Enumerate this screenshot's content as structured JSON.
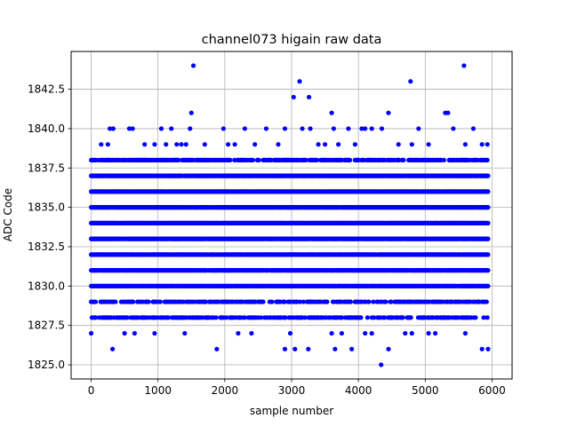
{
  "chart_data": {
    "type": "scatter",
    "title": "channel073 higain raw data",
    "xlabel": "sample number",
    "ylabel": "ADC Code",
    "xlim": [
      -300,
      6300
    ],
    "ylim": [
      1824.1,
      1844.9
    ],
    "xticks": [
      0,
      1000,
      2000,
      3000,
      4000,
      5000,
      6000
    ],
    "xtick_labels": [
      "0",
      "1000",
      "2000",
      "3000",
      "4000",
      "5000",
      "6000"
    ],
    "yticks": [
      1825.0,
      1827.5,
      1830.0,
      1832.5,
      1835.0,
      1837.5,
      1840.0,
      1842.5
    ],
    "ytick_labels": [
      "1825.0",
      "1827.5",
      "1830.0",
      "1832.5",
      "1835.0",
      "1837.5",
      "1840.0",
      "1842.5"
    ],
    "grid": true,
    "marker_color": "#0000ff",
    "x_range": [
      0,
      5940
    ],
    "dense_rows": [
      1830,
      1831,
      1832,
      1833,
      1834,
      1835,
      1836,
      1837
    ],
    "medium_rows": [
      1828,
      1829,
      1838
    ],
    "sparse_points": [
      {
        "x": 0,
        "y": 1827
      },
      {
        "x": 320,
        "y": 1826
      },
      {
        "x": 500,
        "y": 1827
      },
      {
        "x": 650,
        "y": 1827
      },
      {
        "x": 950,
        "y": 1827
      },
      {
        "x": 1400,
        "y": 1827
      },
      {
        "x": 1880,
        "y": 1826
      },
      {
        "x": 2200,
        "y": 1827
      },
      {
        "x": 2400,
        "y": 1827
      },
      {
        "x": 2900,
        "y": 1826
      },
      {
        "x": 2980,
        "y": 1827
      },
      {
        "x": 3050,
        "y": 1826
      },
      {
        "x": 3250,
        "y": 1826
      },
      {
        "x": 3600,
        "y": 1827
      },
      {
        "x": 3650,
        "y": 1826
      },
      {
        "x": 3750,
        "y": 1827
      },
      {
        "x": 3900,
        "y": 1826
      },
      {
        "x": 4100,
        "y": 1827
      },
      {
        "x": 4200,
        "y": 1827
      },
      {
        "x": 4340,
        "y": 1825
      },
      {
        "x": 4450,
        "y": 1826
      },
      {
        "x": 4700,
        "y": 1827
      },
      {
        "x": 4800,
        "y": 1827
      },
      {
        "x": 5050,
        "y": 1827
      },
      {
        "x": 5150,
        "y": 1827
      },
      {
        "x": 5600,
        "y": 1827
      },
      {
        "x": 5850,
        "y": 1826
      },
      {
        "x": 5940,
        "y": 1826
      },
      {
        "x": 150,
        "y": 1839
      },
      {
        "x": 250,
        "y": 1839
      },
      {
        "x": 280,
        "y": 1840
      },
      {
        "x": 330,
        "y": 1840
      },
      {
        "x": 570,
        "y": 1840
      },
      {
        "x": 620,
        "y": 1840
      },
      {
        "x": 800,
        "y": 1839
      },
      {
        "x": 950,
        "y": 1839
      },
      {
        "x": 1050,
        "y": 1840
      },
      {
        "x": 1120,
        "y": 1839
      },
      {
        "x": 1200,
        "y": 1840
      },
      {
        "x": 1280,
        "y": 1839
      },
      {
        "x": 1350,
        "y": 1839
      },
      {
        "x": 1420,
        "y": 1839
      },
      {
        "x": 1480,
        "y": 1840
      },
      {
        "x": 1500,
        "y": 1841
      },
      {
        "x": 1530,
        "y": 1844
      },
      {
        "x": 1700,
        "y": 1839
      },
      {
        "x": 1980,
        "y": 1840
      },
      {
        "x": 2050,
        "y": 1839
      },
      {
        "x": 2150,
        "y": 1839
      },
      {
        "x": 2300,
        "y": 1840
      },
      {
        "x": 2450,
        "y": 1839
      },
      {
        "x": 2620,
        "y": 1840
      },
      {
        "x": 2800,
        "y": 1839
      },
      {
        "x": 2900,
        "y": 1840
      },
      {
        "x": 3030,
        "y": 1842
      },
      {
        "x": 3120,
        "y": 1843
      },
      {
        "x": 3160,
        "y": 1840
      },
      {
        "x": 3260,
        "y": 1842
      },
      {
        "x": 3280,
        "y": 1840
      },
      {
        "x": 3400,
        "y": 1839
      },
      {
        "x": 3500,
        "y": 1839
      },
      {
        "x": 3600,
        "y": 1841
      },
      {
        "x": 3630,
        "y": 1840
      },
      {
        "x": 3700,
        "y": 1839
      },
      {
        "x": 3850,
        "y": 1840
      },
      {
        "x": 3950,
        "y": 1839
      },
      {
        "x": 4050,
        "y": 1840
      },
      {
        "x": 4100,
        "y": 1840
      },
      {
        "x": 4200,
        "y": 1840
      },
      {
        "x": 4350,
        "y": 1840
      },
      {
        "x": 4450,
        "y": 1841
      },
      {
        "x": 4600,
        "y": 1839
      },
      {
        "x": 4780,
        "y": 1843
      },
      {
        "x": 4800,
        "y": 1839
      },
      {
        "x": 4900,
        "y": 1840
      },
      {
        "x": 5050,
        "y": 1839
      },
      {
        "x": 5300,
        "y": 1841
      },
      {
        "x": 5340,
        "y": 1841
      },
      {
        "x": 5420,
        "y": 1840
      },
      {
        "x": 5580,
        "y": 1844
      },
      {
        "x": 5600,
        "y": 1839
      },
      {
        "x": 5720,
        "y": 1840
      },
      {
        "x": 5850,
        "y": 1839
      },
      {
        "x": 5930,
        "y": 1839
      }
    ]
  }
}
